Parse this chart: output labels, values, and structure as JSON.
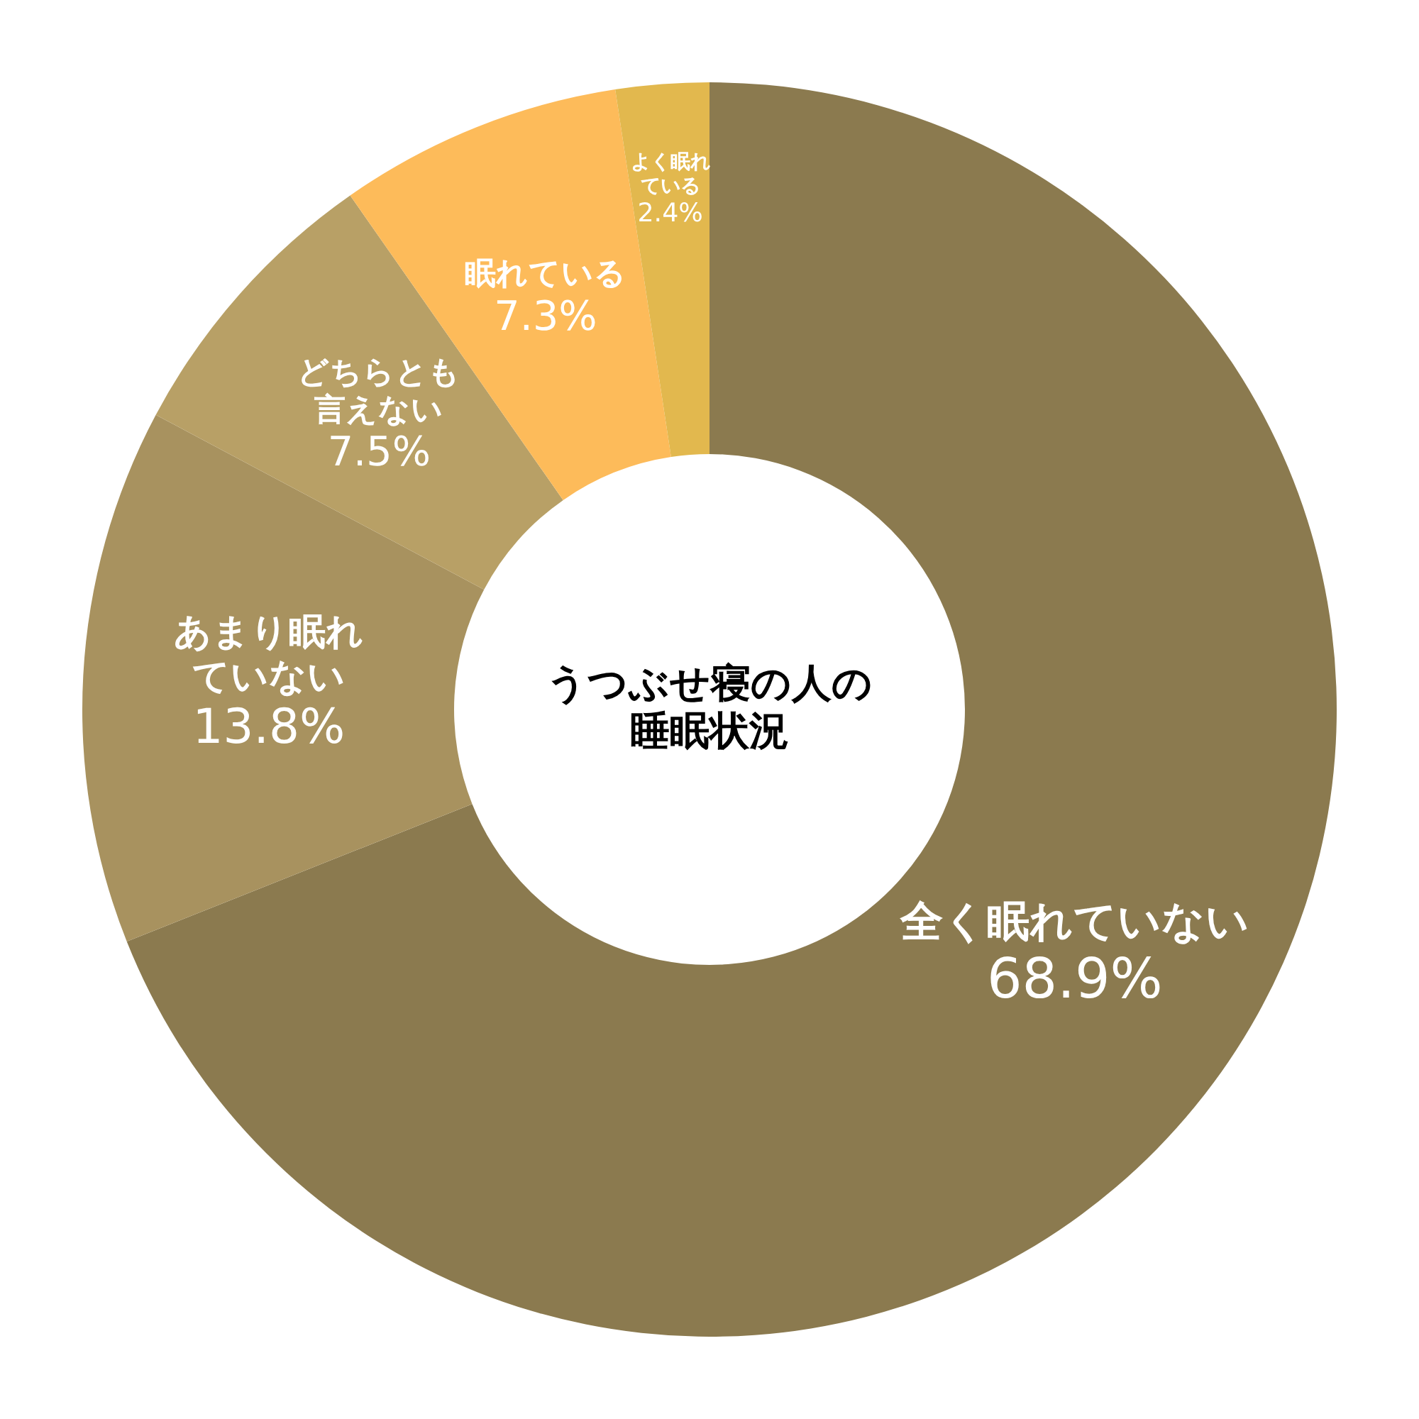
{
  "chart_data": {
    "type": "donut",
    "title": "うつぶせ寝の人の睡眠状況",
    "categories": [
      "全く眠れていない",
      "あまり眠れていない",
      "どちらとも言えない",
      "眠れている",
      "よく眠れている"
    ],
    "values": [
      68.9,
      13.8,
      7.5,
      7.3,
      2.4
    ],
    "colors": [
      "#8b7a4f",
      "#a8925f",
      "#b8a066",
      "#fdbb5a",
      "#e2b84e"
    ],
    "value_labels": [
      "68.9%",
      "13.8%",
      "7.5%",
      "7.3%",
      "2.4%"
    ],
    "legend": false
  }
}
